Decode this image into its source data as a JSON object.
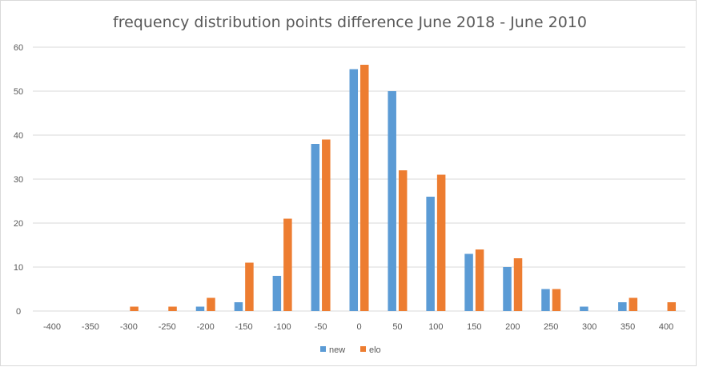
{
  "chart_data": {
    "type": "bar",
    "title": "frequency distribution points difference June 2018 - June 2010",
    "categories": [
      "-400",
      "-350",
      "-300",
      "-250",
      "-200",
      "-150",
      "-100",
      "-50",
      "0",
      "50",
      "100",
      "150",
      "200",
      "250",
      "300",
      "350",
      "400"
    ],
    "series": [
      {
        "name": "new",
        "color": "#5b9bd5",
        "values": [
          0,
          0,
          0,
          0,
          1,
          2,
          8,
          38,
          55,
          50,
          26,
          13,
          10,
          5,
          1,
          2,
          0
        ]
      },
      {
        "name": "elo",
        "color": "#ed7d31",
        "values": [
          0,
          0,
          1,
          1,
          3,
          11,
          21,
          39,
          56,
          32,
          31,
          14,
          12,
          5,
          0,
          3,
          2
        ]
      }
    ],
    "xlabel": "",
    "ylabel": "",
    "ylim": [
      0,
      60
    ],
    "yticks": [
      "0",
      "10",
      "20",
      "30",
      "40",
      "50",
      "60"
    ],
    "grid": true,
    "legend": "bottom"
  }
}
